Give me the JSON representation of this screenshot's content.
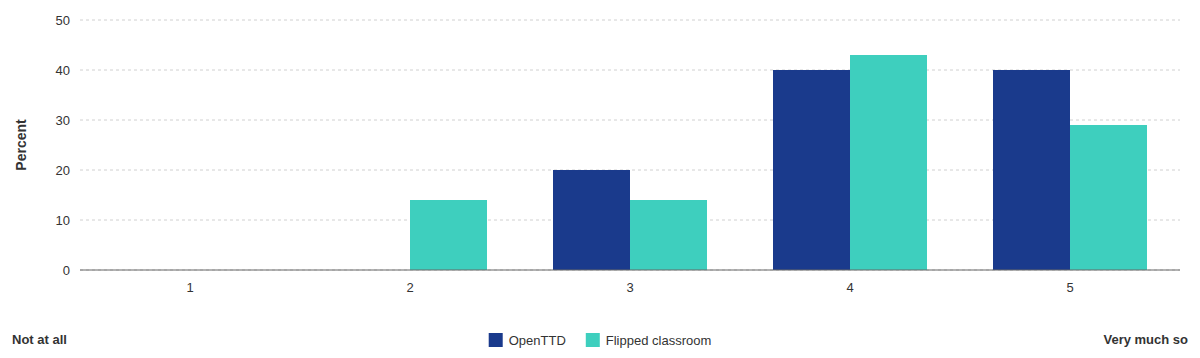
{
  "chart_data": {
    "type": "bar",
    "categories": [
      "1",
      "2",
      "3",
      "4",
      "5"
    ],
    "series": [
      {
        "name": "OpenTTD",
        "color": "#1a3a8c",
        "values": [
          0,
          0,
          20,
          40,
          40
        ]
      },
      {
        "name": "Flipped classroom",
        "color": "#3ecfbe",
        "values": [
          0,
          14,
          14,
          43,
          29
        ]
      }
    ],
    "ylabel": "Percent",
    "ylim": [
      0,
      50
    ],
    "yticks": [
      0,
      10,
      20,
      30,
      40,
      50
    ],
    "grid": true,
    "legend": "bottom",
    "annotations": [
      "Not at all",
      "Very much so"
    ]
  }
}
